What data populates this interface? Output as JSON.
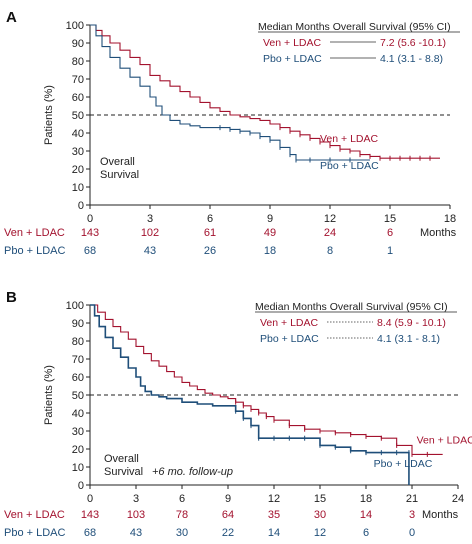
{
  "colors": {
    "ven": "#a3122e",
    "pbo": "#1f4e79",
    "axis": "#222222",
    "reference": "#222222"
  },
  "chart_data": [
    {
      "panel": "A",
      "type": "line",
      "ylabel": "Patients (%)",
      "xlabel": "Months",
      "xlim": [
        0,
        18
      ],
      "ylim": [
        0,
        100
      ],
      "xticks": [
        0,
        3,
        6,
        9,
        12,
        15,
        18
      ],
      "yticks": [
        0,
        10,
        20,
        30,
        40,
        50,
        60,
        70,
        80,
        90,
        100
      ],
      "reference_y": 50,
      "annotation_lines": [
        "Overall",
        "Survival"
      ],
      "legend": {
        "title": "Median Months Overall Survival (95% CI)",
        "entries": [
          {
            "name": "Ven + LDAC",
            "value": "7.2 (5.6 -10.1)",
            "color": "#a3122e"
          },
          {
            "name": "Pbo + LDAC",
            "value": "4.1 (3.1 - 8.8)",
            "color": "#1f4e79"
          }
        ]
      },
      "series": [
        {
          "name": "Ven + LDAC",
          "color": "#a3122e",
          "label_x": 11.5,
          "label_y": 35,
          "x": [
            0,
            0.3,
            0.6,
            1.0,
            1.5,
            2.0,
            2.5,
            3.0,
            3.5,
            4.0,
            4.5,
            5.0,
            5.5,
            6.0,
            6.5,
            7.0,
            7.5,
            8.0,
            8.5,
            9.0,
            9.5,
            10.0,
            10.5,
            11.0,
            11.5,
            12.0,
            12.5,
            13.0,
            13.5,
            14.0,
            14.5,
            15.0,
            15.5,
            16.0,
            16.5,
            17.0,
            17.5
          ],
          "y": [
            100,
            97,
            94,
            90,
            86,
            82,
            78,
            72,
            69,
            66,
            63,
            60,
            57,
            54,
            52,
            50,
            49,
            48,
            47,
            45,
            43,
            41,
            39,
            37,
            35,
            33,
            31,
            30,
            28,
            27,
            26,
            26,
            26,
            26,
            26,
            26,
            26
          ]
        },
        {
          "name": "Pbo + LDAC",
          "color": "#1f4e79",
          "label_x": 11.5,
          "label_y": 20,
          "x": [
            0,
            0.3,
            0.6,
            1.0,
            1.5,
            2.0,
            2.5,
            3.0,
            3.3,
            3.6,
            4.0,
            4.5,
            5.0,
            5.5,
            6.0,
            6.5,
            7.0,
            7.5,
            8.0,
            8.5,
            9.0,
            9.5,
            10.0,
            10.3,
            11.0,
            12.0,
            13.0,
            14.0
          ],
          "y": [
            100,
            94,
            88,
            82,
            76,
            71,
            66,
            60,
            55,
            50,
            47,
            45,
            44,
            43,
            43,
            43,
            42,
            41,
            40,
            38,
            36,
            32,
            28,
            25,
            25,
            25,
            25,
            25
          ]
        }
      ],
      "risk_table": {
        "rows": [
          {
            "name": "Ven + LDAC",
            "color": "#a3122e",
            "values": [
              "143",
              "102",
              "61",
              "49",
              "24",
              "6"
            ]
          },
          {
            "name": "Pbo + LDAC",
            "color": "#1f4e79",
            "values": [
              "68",
              "43",
              "26",
              "18",
              "8",
              "1"
            ]
          }
        ]
      }
    },
    {
      "panel": "B",
      "type": "line",
      "ylabel": "Patients (%)",
      "xlabel": "Months",
      "xlim": [
        0,
        24
      ],
      "ylim": [
        0,
        100
      ],
      "xticks": [
        0,
        3,
        6,
        9,
        12,
        15,
        18,
        21,
        24
      ],
      "yticks": [
        0,
        10,
        20,
        30,
        40,
        50,
        60,
        70,
        80,
        90,
        100
      ],
      "reference_y": 50,
      "annotation_lines": [
        "Overall",
        "Survival"
      ],
      "annotation_note": "+6 mo. follow-up",
      "legend": {
        "title": "Median Months Overall Survival (95% CI)",
        "entries": [
          {
            "name": "Ven + LDAC",
            "value": "8.4 (5.9 - 10.1)",
            "color": "#a3122e"
          },
          {
            "name": "Pbo + LDAC",
            "value": "4.1 (3.1 - 8.1)",
            "color": "#1f4e79"
          }
        ]
      },
      "series": [
        {
          "name": "Ven + LDAC",
          "color": "#a3122e",
          "label_x": 21.3,
          "label_y": 23,
          "x": [
            0,
            0.5,
            1.0,
            1.5,
            2.0,
            2.5,
            3.0,
            3.5,
            4.0,
            4.5,
            5.0,
            5.5,
            6.0,
            6.5,
            7.0,
            7.5,
            8.0,
            8.5,
            9.0,
            9.5,
            10.0,
            10.5,
            11.0,
            11.5,
            12.0,
            13.0,
            14.0,
            15.0,
            16.0,
            17.0,
            18.0,
            19.0,
            20.0,
            21.0,
            22.0,
            23.0
          ],
          "y": [
            100,
            96,
            92,
            88,
            85,
            81,
            77,
            73,
            69,
            66,
            63,
            60,
            57,
            55,
            53,
            51,
            50,
            49,
            48,
            46,
            44,
            42,
            40,
            38,
            36,
            33,
            31,
            30,
            29,
            28,
            27,
            26,
            22,
            17,
            17,
            17
          ]
        },
        {
          "name": "Pbo + LDAC",
          "color": "#1f4e79",
          "label_x": 18.5,
          "label_y": 10,
          "x": [
            0,
            0.3,
            0.6,
            1.0,
            1.5,
            2.0,
            2.5,
            3.0,
            3.3,
            3.6,
            4.0,
            4.5,
            5.0,
            6.0,
            7.0,
            8.0,
            9.0,
            9.5,
            10.0,
            10.5,
            11.0,
            12.0,
            13.0,
            14.0,
            15.0,
            16.0,
            17.0,
            18.0,
            19.0,
            20.0,
            20.8,
            20.8
          ],
          "y": [
            100,
            94,
            88,
            82,
            76,
            71,
            65,
            60,
            55,
            52,
            50,
            49,
            48,
            46,
            45,
            44,
            44,
            41,
            37,
            33,
            26,
            26,
            26,
            26,
            22,
            21,
            19,
            18,
            18,
            18,
            18,
            0
          ]
        }
      ],
      "risk_table": {
        "rows": [
          {
            "name": "Ven + LDAC",
            "color": "#a3122e",
            "values": [
              "143",
              "103",
              "78",
              "64",
              "35",
              "30",
              "14",
              "3"
            ]
          },
          {
            "name": "Pbo + LDAC",
            "color": "#1f4e79",
            "values": [
              "68",
              "43",
              "30",
              "22",
              "14",
              "12",
              "6",
              "0"
            ]
          }
        ]
      }
    }
  ]
}
